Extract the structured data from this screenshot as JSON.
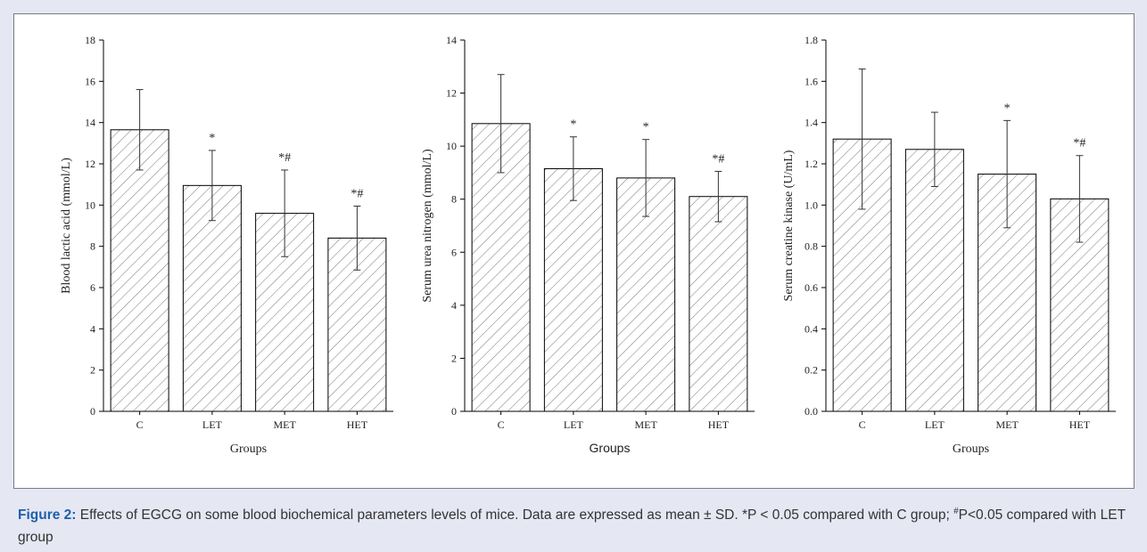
{
  "chart_data": [
    {
      "type": "bar",
      "y_label": "Blood lactic acid (mmol/L)",
      "x_label": "Groups",
      "categories": [
        "C",
        "LET",
        "MET",
        "HET"
      ],
      "values": [
        13.65,
        10.95,
        9.6,
        8.4
      ],
      "errors": [
        1.95,
        1.7,
        2.1,
        1.55
      ],
      "value_annotations": [
        null,
        "*",
        "*#",
        "*#"
      ],
      "ylim": [
        0,
        18
      ],
      "yticks": [
        0,
        2,
        4,
        6,
        8,
        10,
        12,
        14,
        16,
        18
      ]
    },
    {
      "type": "bar",
      "y_label": "Serum urea nitrogen (mmol/L)",
      "x_label": "Groups",
      "categories": [
        "C",
        "LET",
        "MET",
        "HET"
      ],
      "values": [
        10.85,
        9.15,
        8.8,
        8.1
      ],
      "errors": [
        1.85,
        1.2,
        1.45,
        0.95
      ],
      "value_annotations": [
        null,
        "*",
        "*",
        "*#"
      ],
      "ylim": [
        0,
        14
      ],
      "yticks": [
        0,
        2,
        4,
        6,
        8,
        10,
        12,
        14
      ]
    },
    {
      "type": "bar",
      "y_label": "Serum creatine kinase (U/mL)",
      "x_label": "Groups",
      "categories": [
        "C",
        "LET",
        "MET",
        "HET"
      ],
      "values": [
        1.32,
        1.27,
        1.15,
        1.03
      ],
      "errors": [
        0.34,
        0.18,
        0.26,
        0.21
      ],
      "value_annotations": [
        null,
        null,
        "*",
        "*#"
      ],
      "ylim": [
        0,
        1.8
      ],
      "yticks": [
        {
          "value": 0,
          "label": "0.0"
        },
        0.2,
        0.4,
        0.6,
        0.8,
        {
          "value": 1,
          "label": "1.0"
        },
        1.2,
        1.4,
        1.6,
        1.8
      ]
    }
  ],
  "caption": {
    "label": "Figure 2:",
    "text_before": "Effects of EGCG on some blood biochemical parameters levels of mice. Data are expressed as mean ± SD. *P < 0.05 compared with C group; ",
    "superscript": "#",
    "text_after": "P<0.05 compared with LET group"
  }
}
